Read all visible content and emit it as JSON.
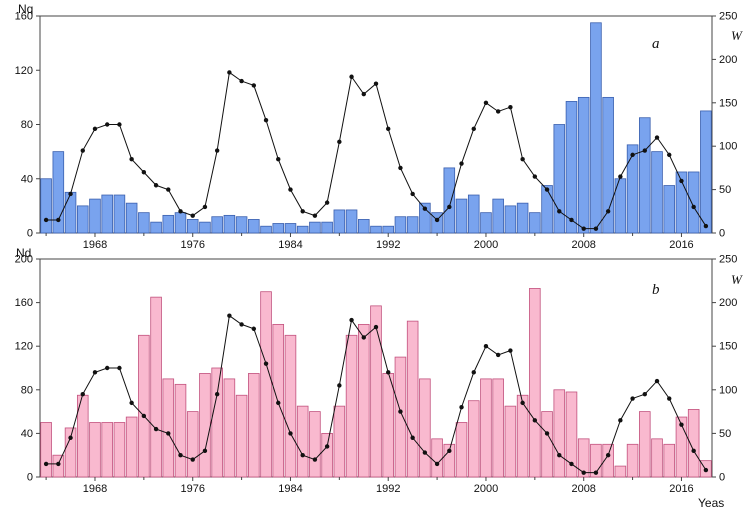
{
  "labels": {
    "panel_a": "a",
    "panel_b": "b",
    "left_axis_a": "Nq",
    "left_axis_b": "Nd",
    "right_axis": "W",
    "xlabel": "Yeas"
  },
  "chart_data": [
    {
      "type": "bar",
      "panel": "a",
      "start_year": 1964,
      "x_tick_years": [
        1968,
        1976,
        1984,
        1992,
        2000,
        2008,
        2016
      ],
      "left_axis": {
        "label": "Nq",
        "min": 0,
        "max": 160,
        "tick_step": 40
      },
      "right_axis": {
        "label": "W",
        "min": 0,
        "max": 250,
        "tick_step": 50
      },
      "bar_series": {
        "name": "Nq",
        "fill": "#79a3ee",
        "stroke": "#3a5fae",
        "values": [
          40,
          60,
          30,
          20,
          25,
          28,
          28,
          22,
          15,
          8,
          13,
          15,
          10,
          8,
          12,
          13,
          12,
          10,
          5,
          7,
          7,
          5,
          8,
          8,
          17,
          17,
          10,
          5,
          5,
          12,
          12,
          22,
          15,
          48,
          25,
          28,
          15,
          25,
          20,
          22,
          15,
          35,
          80,
          97,
          100,
          155,
          100,
          40,
          65,
          85,
          60,
          35,
          45,
          45,
          90
        ]
      },
      "line_series": {
        "name": "W",
        "axis": "right",
        "color": "#111111",
        "values": [
          15,
          15,
          45,
          95,
          120,
          125,
          125,
          85,
          70,
          55,
          50,
          25,
          20,
          30,
          95,
          185,
          175,
          170,
          130,
          85,
          50,
          25,
          20,
          35,
          105,
          180,
          160,
          172,
          120,
          75,
          45,
          28,
          15,
          30,
          80,
          120,
          150,
          140,
          145,
          85,
          65,
          50,
          25,
          15,
          5,
          5,
          25,
          65,
          90,
          95,
          110,
          90,
          60,
          30,
          8
        ]
      }
    },
    {
      "type": "bar",
      "panel": "b",
      "start_year": 1964,
      "x_tick_years": [
        1968,
        1976,
        1984,
        1992,
        2000,
        2008,
        2016
      ],
      "left_axis": {
        "label": "Nd",
        "min": 0,
        "max": 200,
        "tick_step": 40
      },
      "right_axis": {
        "label": "W",
        "min": 0,
        "max": 250,
        "tick_step": 50
      },
      "bar_series": {
        "name": "Nd",
        "fill": "#f9b9cf",
        "stroke": "#c2527e",
        "values": [
          50,
          20,
          45,
          75,
          50,
          50,
          50,
          55,
          130,
          165,
          90,
          85,
          60,
          95,
          100,
          90,
          75,
          95,
          170,
          140,
          130,
          65,
          60,
          40,
          65,
          130,
          140,
          157,
          95,
          110,
          143,
          90,
          35,
          30,
          50,
          70,
          90,
          90,
          65,
          75,
          173,
          60,
          80,
          78,
          35,
          30,
          30,
          10,
          30,
          60,
          35,
          30,
          55,
          62,
          15
        ]
      },
      "line_series": {
        "name": "W",
        "axis": "right",
        "color": "#111111",
        "values": [
          15,
          15,
          45,
          95,
          120,
          125,
          125,
          85,
          70,
          55,
          50,
          25,
          20,
          30,
          95,
          185,
          175,
          170,
          130,
          85,
          50,
          25,
          20,
          35,
          105,
          180,
          160,
          172,
          120,
          75,
          45,
          28,
          15,
          30,
          80,
          120,
          150,
          140,
          145,
          85,
          65,
          50,
          25,
          15,
          5,
          5,
          25,
          65,
          90,
          95,
          110,
          90,
          60,
          30,
          8
        ]
      }
    }
  ]
}
